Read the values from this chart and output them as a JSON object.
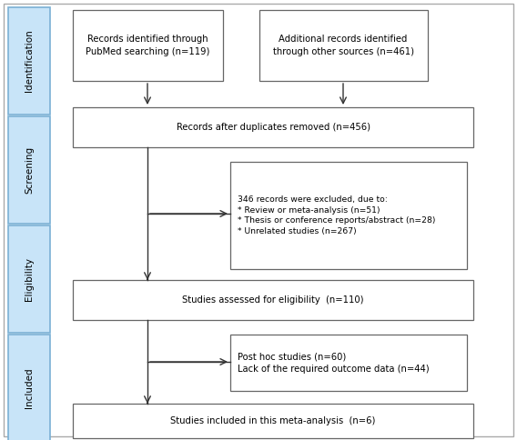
{
  "fig_width": 5.68,
  "fig_height": 4.84,
  "dpi": 100,
  "bg_color": "#ffffff",
  "box_facecolor": "#ffffff",
  "box_edgecolor": "#666666",
  "outer_edgecolor": "#aaaaaa",
  "side_label_facecolor": "#c8e4f8",
  "side_label_edgecolor": "#7ab0d4",
  "arrow_color": "#333333",
  "font_size": 7.2,
  "side_font_size": 7.5,
  "side_labels": [
    "Identification",
    "Screening",
    "Eligibility",
    "Included"
  ],
  "box1_text": "Records identified through\nPubMed searching (n=119)",
  "box2_text": "Additional records identified\nthrough other sources (n=461)",
  "box3_text": "Records after duplicates removed (n=456)",
  "box4_text": "346 records were excluded, due to:\n* Review or meta-analysis (n=51)\n* Thesis or conference reports/abstract (n=28)\n* Unrelated studies (n=267)",
  "box5_text": "Studies assessed for eligibility  (n=110)",
  "box6_text": "Post hoc studies (n=60)\nLack of the required outcome data (n=44)",
  "box7_text": "Studies included in this meta-analysis  (n=6)"
}
